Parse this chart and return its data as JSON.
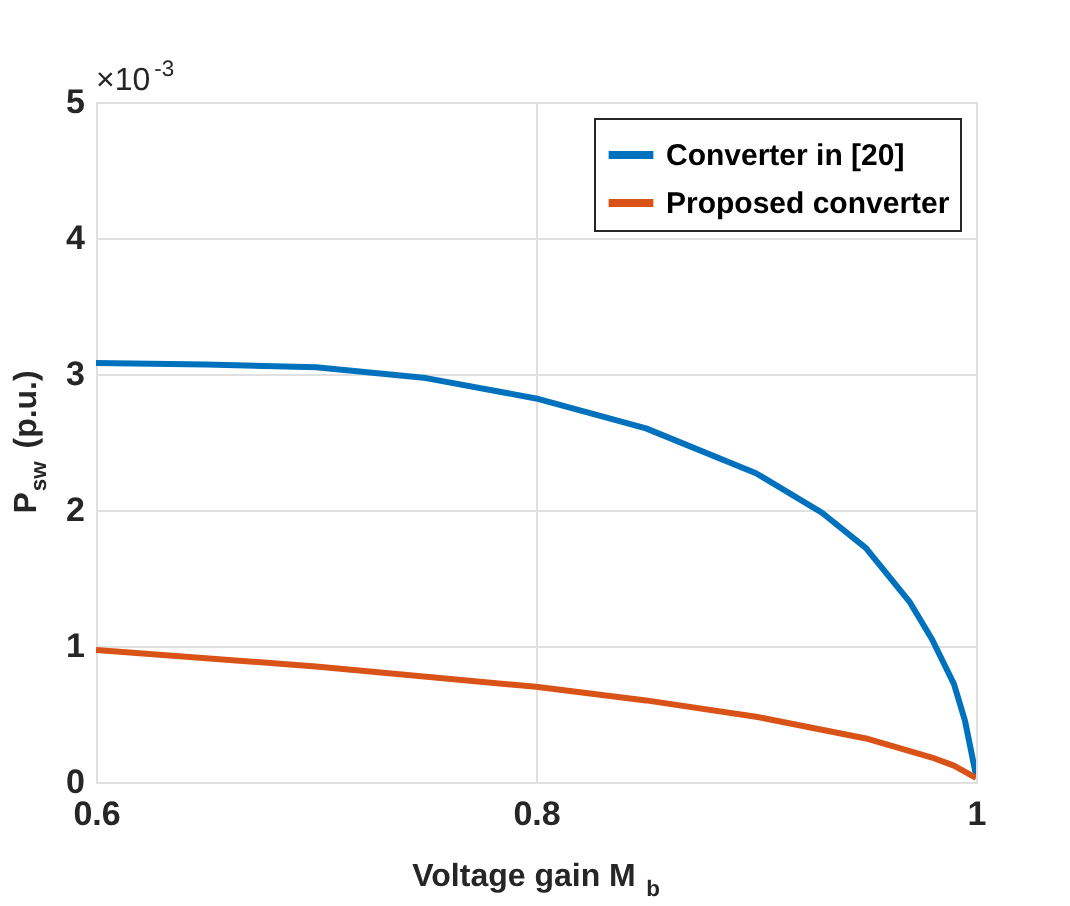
{
  "chart_data": {
    "type": "line",
    "xlabel": "Voltage gain M$_{b}$",
    "ylabel": "P$_{sw}$ (p.u.)",
    "annotations": [
      "×10$^{-3}$"
    ],
    "xlim": [
      0.6,
      1
    ],
    "xticks": [
      0.6,
      0.8,
      1
    ],
    "ylim": [
      0,
      5
    ],
    "yticks": [
      0,
      1,
      2,
      3,
      4,
      5
    ],
    "grid": true,
    "legend": "top right",
    "line_style": "solid",
    "marker": "none",
    "series": [
      {
        "name": "Converter in [20]",
        "color": "#0072bd",
        "x": [
          0.6,
          0.65,
          0.7,
          0.75,
          0.8,
          0.85,
          0.9,
          0.93,
          0.95,
          0.97,
          0.98,
          0.99,
          0.995,
          1.0
        ],
        "values": [
          3.08,
          3.07,
          3.05,
          2.97,
          2.82,
          2.6,
          2.27,
          1.98,
          1.72,
          1.32,
          1.05,
          0.72,
          0.45,
          0.05
        ]
      },
      {
        "name": "Proposed converter",
        "color": "#d95319",
        "x": [
          0.6,
          0.7,
          0.8,
          0.85,
          0.9,
          0.95,
          0.98,
          0.99,
          1.0
        ],
        "values": [
          0.97,
          0.85,
          0.7,
          0.6,
          0.48,
          0.32,
          0.18,
          0.12,
          0.03
        ]
      }
    ]
  }
}
